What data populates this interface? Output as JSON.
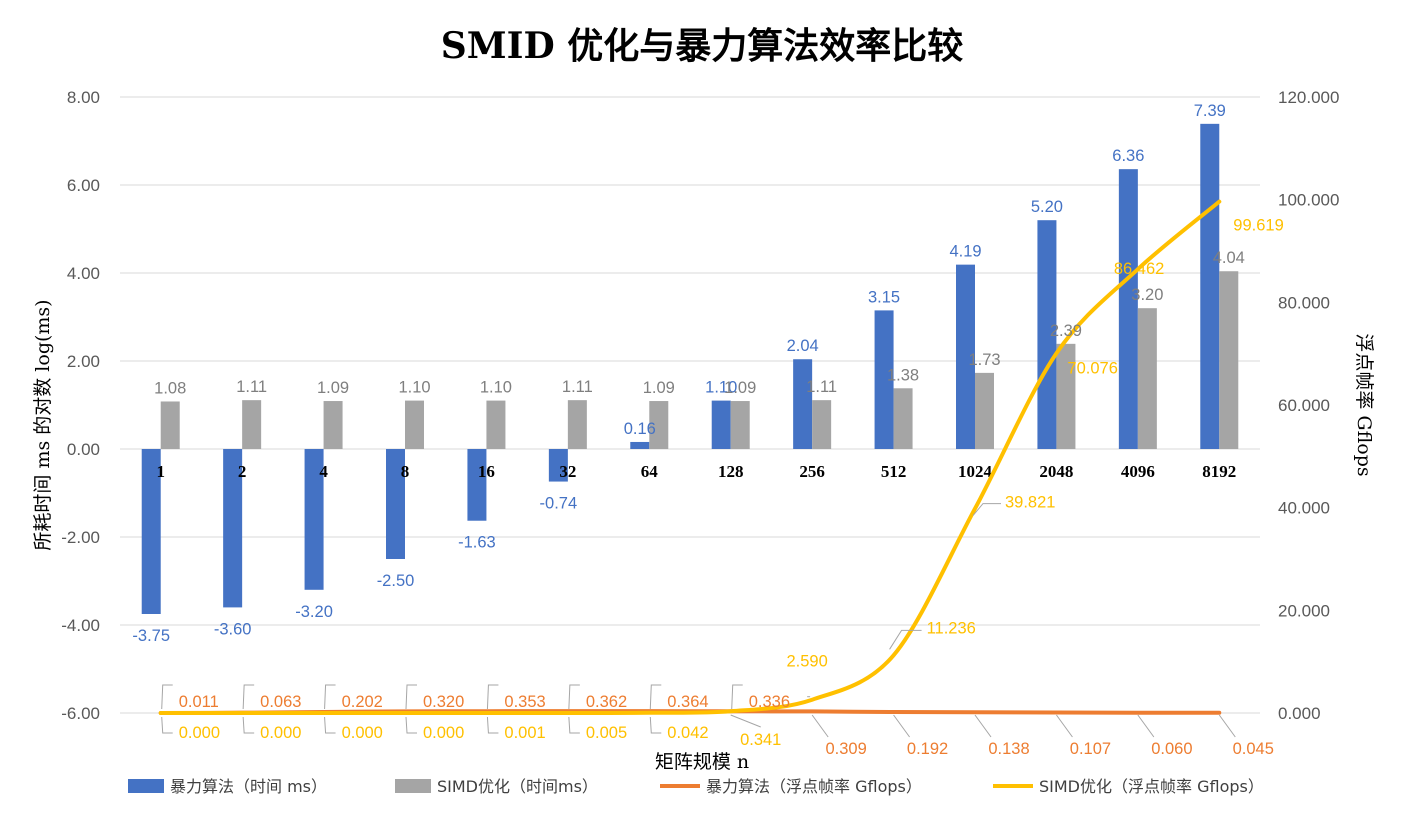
{
  "chart_data": {
    "type": "bar",
    "title": "SMID 优化与暴力算法效率比较",
    "xlabel": "矩阵规模 n",
    "ylabel": "所耗时间 ms 的对数 log(ms)",
    "y2label": "浮点帧率 Gflops",
    "categories": [
      "1",
      "2",
      "4",
      "8",
      "16",
      "32",
      "64",
      "128",
      "256",
      "512",
      "1024",
      "2048",
      "4096",
      "8192"
    ],
    "ylim": [
      -6,
      8
    ],
    "y_ticks": [
      "-6.00",
      "-4.00",
      "-2.00",
      "0.00",
      "2.00",
      "4.00",
      "6.00",
      "8.00"
    ],
    "y2lim": [
      0,
      120
    ],
    "y2_ticks": [
      "0.000",
      "20.000",
      "40.000",
      "60.000",
      "80.000",
      "100.000",
      "120.000"
    ],
    "grid": true,
    "legend_position": "bottom",
    "series": [
      {
        "name": "暴力算法（时间 ms）",
        "kind": "bar",
        "axis": "left",
        "color": "#4472C4",
        "label_color": "#4472C4",
        "values": [
          -3.75,
          -3.6,
          -3.2,
          -2.5,
          -1.63,
          -0.74,
          0.16,
          1.1,
          2.04,
          3.15,
          4.19,
          5.2,
          6.36,
          7.39
        ],
        "labels": [
          "-3.75",
          "-3.60",
          "-3.20",
          "-2.50",
          "-1.63",
          "-0.74",
          "0.16",
          "1.10",
          "2.04",
          "3.15",
          "4.19",
          "5.20",
          "6.36",
          "7.39"
        ]
      },
      {
        "name": "SIMD优化（时间ms）",
        "kind": "bar",
        "axis": "left",
        "color": "#A5A5A5",
        "label_color": "#7F7F7F",
        "values": [
          1.08,
          1.11,
          1.09,
          1.1,
          1.1,
          1.11,
          1.09,
          1.09,
          1.11,
          1.38,
          1.73,
          2.39,
          3.2,
          4.04
        ],
        "labels": [
          "1.08",
          "1.11",
          "1.09",
          "1.10",
          "1.10",
          "1.11",
          "1.09",
          "1.09",
          "1.11",
          "1.38",
          "1.73",
          "2.39",
          "3.20",
          "4.04"
        ]
      },
      {
        "name": "暴力算法（浮点帧率 Gflops）",
        "kind": "line",
        "axis": "right",
        "color": "#ED7D31",
        "label_color": "#ED7D31",
        "values": [
          0.011,
          0.063,
          0.202,
          0.32,
          0.353,
          0.362,
          0.364,
          0.336,
          0.309,
          0.192,
          0.138,
          0.107,
          0.06,
          0.045
        ],
        "labels": [
          "0.011",
          "0.063",
          "0.202",
          "0.320",
          "0.353",
          "0.362",
          "0.364",
          "0.336",
          "0.309",
          "0.192",
          "0.138",
          "0.107",
          "0.060",
          "0.045"
        ]
      },
      {
        "name": "SIMD优化（浮点帧率 Gflops）",
        "kind": "line",
        "axis": "right",
        "color": "#FFC000",
        "label_color": "#FFC000",
        "values": [
          0.0,
          0.0,
          0.0,
          0.0,
          0.001,
          0.005,
          0.042,
          0.341,
          2.59,
          11.236,
          39.821,
          70.076,
          86.462,
          99.619
        ],
        "labels": [
          "0.000",
          "0.000",
          "0.000",
          "0.000",
          "0.001",
          "0.005",
          "0.042",
          "0.341",
          "2.590",
          "11.236",
          "39.821",
          "70.076",
          "86.462",
          "99.619"
        ]
      }
    ]
  }
}
